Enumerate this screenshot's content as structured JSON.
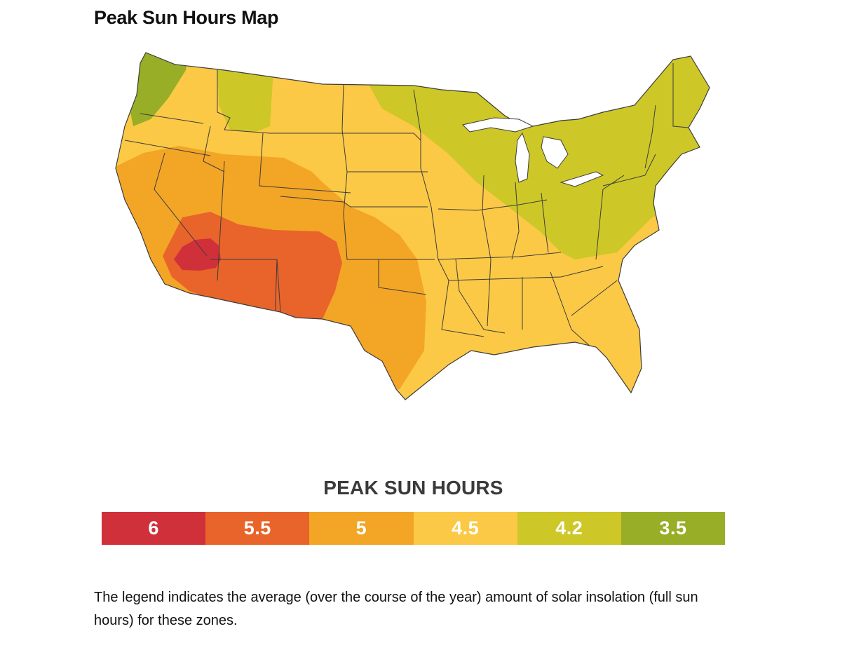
{
  "page": {
    "title": "Peak Sun Hours Map",
    "caption": "The legend indicates the average (over the course of the year) amount of solar insolation (full sun hours) for these zones."
  },
  "map": {
    "region": "contiguous-united-states",
    "zone_colors": {
      "6": "#d0303a",
      "5.5": "#e8642a",
      "5": "#f3a526",
      "4.5": "#fcc946",
      "4.2": "#cdc728",
      "3.5": "#98ae26"
    },
    "border_color": "#3c3c3c"
  },
  "legend": {
    "title": "PEAK SUN HOURS",
    "items": [
      {
        "label": "6",
        "color": "#d0303a"
      },
      {
        "label": "5.5",
        "color": "#e8642a"
      },
      {
        "label": "5",
        "color": "#f3a526"
      },
      {
        "label": "4.5",
        "color": "#fcc946"
      },
      {
        "label": "4.2",
        "color": "#cdc728"
      },
      {
        "label": "3.5",
        "color": "#98ae26"
      }
    ]
  }
}
